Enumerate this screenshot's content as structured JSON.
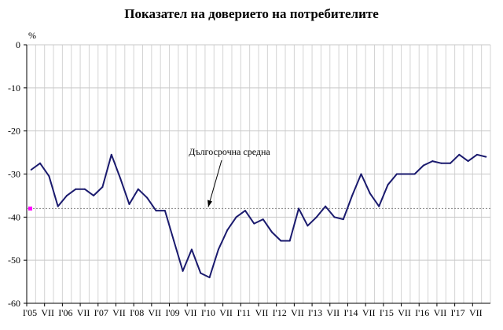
{
  "chart_data": {
    "type": "line",
    "title": "Показател на доверието на потребителите",
    "ylabel": "%",
    "ylim": [
      -60,
      0
    ],
    "yticks": [
      0,
      -10,
      -20,
      -30,
      -40,
      -50,
      -60
    ],
    "grid": true,
    "x_labels": [
      "І'05",
      "VII",
      "І'06",
      "VII",
      "І'07",
      "VII",
      "І'08",
      "VII",
      "І'09",
      "VII",
      "І'10",
      "VII",
      "І'11",
      "VII",
      "І'12",
      "VII",
      "І'13",
      "VII",
      "І'14",
      "VII",
      "І'15",
      "VII",
      "І'16",
      "VII",
      "І'17",
      "VII"
    ],
    "series": [
      {
        "color": "#1a1a6e",
        "values": [
          -29,
          -27.5,
          -30.5,
          -37.5,
          -35,
          -33.5,
          -33.5,
          -35,
          -33,
          -25.5,
          -31,
          -37,
          -33.5,
          -35.5,
          -38.5,
          -38.5,
          -45.5,
          -52.5,
          -47.5,
          -53,
          -54,
          -47.5,
          -43,
          -40,
          -38.5,
          -41.5,
          -40.5,
          -43.5,
          -45.5,
          -45.5,
          -38,
          -42,
          -40,
          -37.5,
          -40,
          -40.5,
          -35,
          -30,
          -34.5,
          -37.5,
          -32.5,
          -30,
          -30,
          -30,
          -28,
          -27,
          -27.5,
          -27.5,
          -25.5,
          -27,
          -25.5,
          -26
        ]
      }
    ],
    "reference_line": {
      "label": "Дългосрочна средна",
      "value": -38,
      "color": "#808080"
    },
    "marker": {
      "value": -38,
      "color": "#ff00ff"
    }
  }
}
